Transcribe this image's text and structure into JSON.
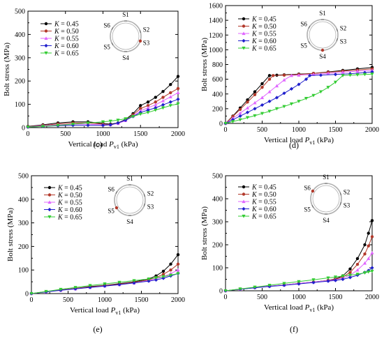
{
  "chart_data": [
    {
      "type": "line",
      "panel_label": "(c)",
      "xlabel": "Vertical load",
      "xlabel_sym": "P",
      "xlabel_sub": "v1",
      "xlabel_unit": "(kPa)",
      "ylabel": "Bolt stress (MPa)",
      "xlim": [
        0,
        2000
      ],
      "ylim": [
        0,
        500
      ],
      "xticks": [
        0,
        500,
        1000,
        1500,
        2000
      ],
      "yticks": [
        0,
        100,
        200,
        300,
        400,
        500
      ],
      "legend_position": "top-left",
      "highlight": "S3",
      "series": [
        {
          "name": "= 0.45",
          "color": "#000000",
          "marker": "circle",
          "x": [
            0,
            200,
            400,
            600,
            800,
            1000,
            1100,
            1200,
            1300,
            1400,
            1500,
            1600,
            1700,
            1800,
            1900,
            2000
          ],
          "y": [
            5,
            12,
            20,
            25,
            25,
            18,
            15,
            20,
            35,
            60,
            95,
            110,
            130,
            155,
            185,
            220
          ]
        },
        {
          "name": "= 0.50",
          "color": "#b2392b",
          "marker": "circle",
          "x": [
            0,
            200,
            400,
            600,
            800,
            1000,
            1100,
            1200,
            1300,
            1400,
            1500,
            1600,
            1700,
            1800,
            1900,
            2000
          ],
          "y": [
            4,
            10,
            16,
            20,
            20,
            15,
            13,
            18,
            32,
            55,
            82,
            95,
            110,
            130,
            150,
            168
          ]
        },
        {
          "name": "= 0.55",
          "color": "#e066ff",
          "marker": "triangle-up",
          "x": [
            0,
            200,
            400,
            600,
            800,
            1000,
            1100,
            1200,
            1300,
            1400,
            1500,
            1600,
            1700,
            1800,
            1900,
            2000
          ],
          "y": [
            3,
            8,
            12,
            15,
            14,
            12,
            12,
            18,
            30,
            50,
            72,
            85,
            98,
            115,
            132,
            150
          ]
        },
        {
          "name": "= 0.60",
          "color": "#1f1fcc",
          "marker": "diamond",
          "x": [
            0,
            200,
            400,
            600,
            800,
            1000,
            1100,
            1200,
            1300,
            1400,
            1500,
            1600,
            1700,
            1800,
            1900,
            2000
          ],
          "y": [
            2,
            5,
            8,
            10,
            10,
            10,
            12,
            20,
            32,
            48,
            65,
            75,
            85,
            98,
            110,
            122
          ]
        },
        {
          "name": "= 0.65",
          "color": "#33cc33",
          "marker": "triangle-down",
          "x": [
            0,
            200,
            400,
            600,
            800,
            1000,
            1100,
            1200,
            1300,
            1400,
            1500,
            1600,
            1700,
            1800,
            1900,
            2000
          ],
          "y": [
            2,
            5,
            10,
            15,
            20,
            25,
            28,
            32,
            38,
            48,
            58,
            65,
            75,
            85,
            95,
            102
          ]
        }
      ]
    },
    {
      "type": "line",
      "panel_label": "(d)",
      "xlabel": "Vertical load",
      "xlabel_sym": "P",
      "xlabel_sub": "v1",
      "xlabel_unit": "(kPa)",
      "ylabel": "Bolt stress (MPa)",
      "xlim": [
        0,
        2000
      ],
      "ylim": [
        0,
        1600
      ],
      "xticks": [
        0,
        500,
        1000,
        1500,
        2000
      ],
      "yticks": [
        0,
        200,
        400,
        600,
        800,
        1000,
        1200,
        1400,
        1600
      ],
      "legend_position": "top-left",
      "highlight": "S4",
      "series": [
        {
          "name": "= 0.45",
          "color": "#000000",
          "marker": "circle",
          "x": [
            0,
            100,
            200,
            300,
            400,
            500,
            600,
            700,
            800,
            1000,
            1200,
            1400,
            1600,
            1800,
            2000
          ],
          "y": [
            0,
            100,
            210,
            320,
            430,
            540,
            650,
            655,
            660,
            670,
            680,
            700,
            720,
            740,
            760
          ]
        },
        {
          "name": "= 0.50",
          "color": "#b2392b",
          "marker": "circle",
          "x": [
            0,
            100,
            200,
            300,
            400,
            500,
            600,
            650,
            800,
            1000,
            1200,
            1400,
            1600,
            1800,
            2000
          ],
          "y": [
            0,
            95,
            190,
            290,
            390,
            490,
            600,
            650,
            655,
            665,
            680,
            695,
            710,
            725,
            740
          ]
        },
        {
          "name": "= 0.55",
          "color": "#e066ff",
          "marker": "triangle-up",
          "x": [
            0,
            100,
            200,
            300,
            400,
            500,
            600,
            700,
            800,
            900,
            1000,
            1200,
            1400,
            1600,
            1800,
            2000
          ],
          "y": [
            0,
            70,
            140,
            210,
            280,
            350,
            430,
            510,
            590,
            650,
            655,
            665,
            680,
            695,
            710,
            720
          ]
        },
        {
          "name": "= 0.60",
          "color": "#1f1fcc",
          "marker": "diamond",
          "x": [
            0,
            100,
            200,
            300,
            400,
            500,
            600,
            700,
            800,
            900,
            1000,
            1100,
            1150,
            1300,
            1500,
            1700,
            1900,
            2000
          ],
          "y": [
            0,
            50,
            100,
            150,
            200,
            250,
            300,
            350,
            410,
            470,
            530,
            600,
            650,
            655,
            665,
            675,
            690,
            700
          ]
        },
        {
          "name": "= 0.65",
          "color": "#33cc33",
          "marker": "triangle-down",
          "x": [
            0,
            100,
            200,
            300,
            400,
            500,
            600,
            700,
            800,
            900,
            1000,
            1100,
            1200,
            1300,
            1400,
            1500,
            1600,
            1700,
            1800,
            1900,
            2000
          ],
          "y": [
            0,
            25,
            50,
            80,
            105,
            135,
            165,
            200,
            230,
            265,
            300,
            340,
            380,
            430,
            490,
            560,
            650,
            655,
            660,
            665,
            670
          ]
        }
      ]
    },
    {
      "type": "line",
      "panel_label": "(e)",
      "xlabel": "Vertical load",
      "xlabel_sym": "P",
      "xlabel_sub": "v1",
      "xlabel_unit": "(kPa)",
      "ylabel": "Bolt stress (MPa)",
      "xlim": [
        0,
        2000
      ],
      "ylim": [
        0,
        500
      ],
      "xticks": [
        0,
        500,
        1000,
        1500,
        2000
      ],
      "yticks": [
        0,
        100,
        200,
        300,
        400,
        500
      ],
      "legend_position": "top-left",
      "highlight": "S5",
      "series": [
        {
          "name": "= 0.45",
          "color": "#000000",
          "marker": "circle",
          "x": [
            0,
            200,
            400,
            600,
            800,
            1000,
            1200,
            1400,
            1600,
            1700,
            1800,
            1900,
            2000
          ],
          "y": [
            0,
            8,
            15,
            22,
            30,
            35,
            42,
            50,
            62,
            75,
            95,
            125,
            165
          ]
        },
        {
          "name": "= 0.50",
          "color": "#b2392b",
          "marker": "circle",
          "x": [
            0,
            200,
            400,
            600,
            800,
            1000,
            1200,
            1400,
            1600,
            1700,
            1800,
            1900,
            2000
          ],
          "y": [
            0,
            8,
            15,
            22,
            28,
            34,
            40,
            48,
            58,
            68,
            82,
            100,
            125
          ]
        },
        {
          "name": "= 0.55",
          "color": "#e066ff",
          "marker": "triangle-up",
          "x": [
            0,
            200,
            400,
            600,
            800,
            1000,
            1200,
            1400,
            1600,
            1700,
            1800,
            1900,
            2000
          ],
          "y": [
            0,
            7,
            14,
            20,
            26,
            32,
            38,
            45,
            55,
            62,
            72,
            85,
            100
          ]
        },
        {
          "name": "= 0.60",
          "color": "#1f1fcc",
          "marker": "diamond",
          "x": [
            0,
            200,
            400,
            600,
            800,
            1000,
            1200,
            1400,
            1600,
            1700,
            1800,
            1900,
            2000
          ],
          "y": [
            0,
            7,
            14,
            20,
            26,
            32,
            38,
            45,
            53,
            58,
            65,
            75,
            85
          ]
        },
        {
          "name": "= 0.65",
          "color": "#33cc33",
          "marker": "triangle-down",
          "x": [
            0,
            200,
            400,
            600,
            800,
            1000,
            1200,
            1400,
            1600,
            1700,
            1800,
            1900,
            2000
          ],
          "y": [
            0,
            9,
            18,
            26,
            34,
            41,
            48,
            55,
            62,
            67,
            72,
            78,
            85
          ]
        }
      ]
    },
    {
      "type": "line",
      "panel_label": "(f)",
      "xlabel": "Vertical load",
      "xlabel_sym": "P",
      "xlabel_sub": "v1",
      "xlabel_unit": "(kPa)",
      "ylabel": "Bolt stress (MPa)",
      "xlim": [
        0,
        2000
      ],
      "ylim": [
        0,
        500
      ],
      "xticks": [
        0,
        500,
        1000,
        1500,
        2000
      ],
      "yticks": [
        0,
        100,
        200,
        300,
        400,
        500
      ],
      "legend_position": "top-left",
      "highlight": "S6",
      "series": [
        {
          "name": "= 0.45",
          "color": "#000000",
          "marker": "circle",
          "x": [
            0,
            200,
            400,
            600,
            800,
            1000,
            1200,
            1400,
            1500,
            1600,
            1700,
            1800,
            1900,
            1950,
            2000
          ],
          "y": [
            0,
            7,
            14,
            20,
            25,
            32,
            38,
            45,
            52,
            65,
            95,
            140,
            200,
            250,
            305
          ]
        },
        {
          "name": "= 0.50",
          "color": "#b2392b",
          "marker": "circle",
          "x": [
            0,
            200,
            400,
            600,
            800,
            1000,
            1200,
            1400,
            1500,
            1600,
            1700,
            1800,
            1900,
            1950,
            2000
          ],
          "y": [
            0,
            7,
            14,
            20,
            25,
            32,
            38,
            45,
            50,
            60,
            80,
            115,
            160,
            195,
            235
          ]
        },
        {
          "name": "= 0.55",
          "color": "#e066ff",
          "marker": "triangle-up",
          "x": [
            0,
            200,
            400,
            600,
            800,
            1000,
            1200,
            1400,
            1500,
            1600,
            1700,
            1800,
            1900,
            1950,
            2000
          ],
          "y": [
            0,
            7,
            14,
            20,
            25,
            32,
            38,
            44,
            48,
            55,
            68,
            90,
            120,
            140,
            165
          ]
        },
        {
          "name": "= 0.60",
          "color": "#1f1fcc",
          "marker": "diamond",
          "x": [
            0,
            200,
            400,
            600,
            800,
            1000,
            1200,
            1400,
            1500,
            1600,
            1700,
            1800,
            1900,
            1950,
            2000
          ],
          "y": [
            0,
            7,
            13,
            19,
            24,
            30,
            36,
            42,
            45,
            50,
            58,
            68,
            80,
            88,
            100
          ]
        },
        {
          "name": "= 0.65",
          "color": "#33cc33",
          "marker": "triangle-down",
          "x": [
            0,
            200,
            400,
            600,
            800,
            1000,
            1200,
            1400,
            1500,
            1600,
            1700,
            1800,
            1900,
            1950,
            2000
          ],
          "y": [
            0,
            8,
            16,
            24,
            32,
            40,
            48,
            56,
            60,
            64,
            68,
            72,
            78,
            82,
            85
          ]
        }
      ]
    }
  ],
  "legend_symbol": "K",
  "ring_labels": [
    "S1",
    "S2",
    "S3",
    "S4",
    "S5",
    "S6"
  ],
  "colors": {
    "ring": "#b0b0b0",
    "highlight": "#b2392b"
  }
}
